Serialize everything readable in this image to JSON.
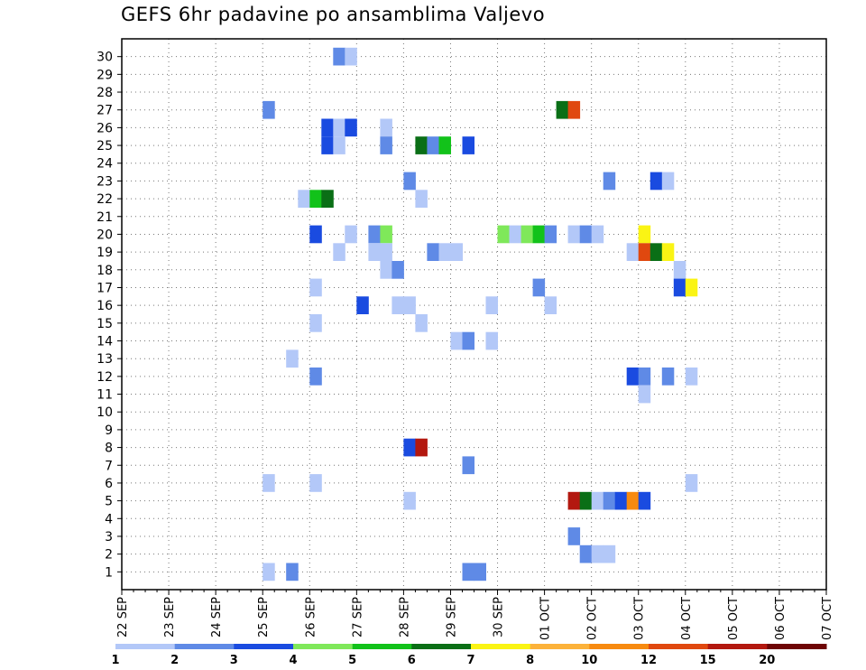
{
  "chart_data": {
    "type": "heatmap",
    "title": "GEFS 6hr padavine po ansamblima Valjevo",
    "xlabel": "",
    "ylabel": "",
    "grid": true,
    "y_ticks": [
      "1",
      "2",
      "3",
      "4",
      "5",
      "6",
      "7",
      "8",
      "9",
      "10",
      "11",
      "12",
      "13",
      "14",
      "15",
      "16",
      "17",
      "18",
      "19",
      "20",
      "21",
      "22",
      "23",
      "24",
      "25",
      "26",
      "27",
      "28",
      "29",
      "30"
    ],
    "x_ticks": [
      "22 SEP",
      "23 SEP",
      "24 SEP",
      "25 SEP",
      "26 SEP",
      "27 SEP",
      "28 SEP",
      "29 SEP",
      "30 SEP",
      "01 OCT",
      "02 OCT",
      "03 OCT",
      "04 OCT",
      "05 OCT",
      "06 OCT",
      "07 OCT"
    ],
    "x_range_steps": [
      0,
      60
    ],
    "colorbar": {
      "labels": [
        "1",
        "2",
        "3",
        "4",
        "5",
        "6",
        "7",
        "8",
        "10",
        "12",
        "15",
        "20"
      ],
      "colors": [
        "#b3c8f8",
        "#5f8ae6",
        "#1a4be0",
        "#7fe85a",
        "#12c21a",
        "#0a6f16",
        "#faf414",
        "#fcb23a",
        "#f78a10",
        "#e0480f",
        "#b3180f",
        "#6e0505"
      ]
    },
    "cells": [
      {
        "member": 30,
        "step": 18,
        "value": 2
      },
      {
        "member": 30,
        "step": 19,
        "value": 1
      },
      {
        "member": 27,
        "step": 12,
        "value": 2
      },
      {
        "member": 27,
        "step": 37,
        "value": 6
      },
      {
        "member": 27,
        "step": 38,
        "value": 12
      },
      {
        "member": 26,
        "step": 17,
        "value": 3
      },
      {
        "member": 26,
        "step": 18,
        "value": 1
      },
      {
        "member": 26,
        "step": 19,
        "value": 3
      },
      {
        "member": 26,
        "step": 22,
        "value": 1
      },
      {
        "member": 25,
        "step": 17,
        "value": 3
      },
      {
        "member": 25,
        "step": 18,
        "value": 1
      },
      {
        "member": 25,
        "step": 22,
        "value": 2
      },
      {
        "member": 25,
        "step": 25,
        "value": 6
      },
      {
        "member": 25,
        "step": 26,
        "value": 2
      },
      {
        "member": 25,
        "step": 27,
        "value": 5
      },
      {
        "member": 25,
        "step": 29,
        "value": 3
      },
      {
        "member": 23,
        "step": 24,
        "value": 2
      },
      {
        "member": 23,
        "step": 41,
        "value": 2
      },
      {
        "member": 23,
        "step": 45,
        "value": 3
      },
      {
        "member": 23,
        "step": 46,
        "value": 1
      },
      {
        "member": 22,
        "step": 15,
        "value": 1
      },
      {
        "member": 22,
        "step": 16,
        "value": 5
      },
      {
        "member": 22,
        "step": 17,
        "value": 6
      },
      {
        "member": 22,
        "step": 25,
        "value": 1
      },
      {
        "member": 20,
        "step": 16,
        "value": 3
      },
      {
        "member": 20,
        "step": 19,
        "value": 1
      },
      {
        "member": 20,
        "step": 21,
        "value": 2
      },
      {
        "member": 20,
        "step": 22,
        "value": 4
      },
      {
        "member": 20,
        "step": 32,
        "value": 4
      },
      {
        "member": 20,
        "step": 33,
        "value": 1
      },
      {
        "member": 20,
        "step": 34,
        "value": 4
      },
      {
        "member": 20,
        "step": 35,
        "value": 5
      },
      {
        "member": 20,
        "step": 36,
        "value": 2
      },
      {
        "member": 20,
        "step": 38,
        "value": 1
      },
      {
        "member": 20,
        "step": 39,
        "value": 2
      },
      {
        "member": 20,
        "step": 40,
        "value": 1
      },
      {
        "member": 20,
        "step": 44,
        "value": 7
      },
      {
        "member": 19,
        "step": 18,
        "value": 1
      },
      {
        "member": 19,
        "step": 21,
        "value": 1
      },
      {
        "member": 19,
        "step": 22,
        "value": 1
      },
      {
        "member": 19,
        "step": 26,
        "value": 2
      },
      {
        "member": 19,
        "step": 27,
        "value": 1
      },
      {
        "member": 19,
        "step": 28,
        "value": 1
      },
      {
        "member": 19,
        "step": 43,
        "value": 1
      },
      {
        "member": 19,
        "step": 44,
        "value": 12
      },
      {
        "member": 19,
        "step": 45,
        "value": 6
      },
      {
        "member": 19,
        "step": 46,
        "value": 7
      },
      {
        "member": 18,
        "step": 22,
        "value": 1
      },
      {
        "member": 18,
        "step": 23,
        "value": 2
      },
      {
        "member": 18,
        "step": 47,
        "value": 1
      },
      {
        "member": 17,
        "step": 16,
        "value": 1
      },
      {
        "member": 17,
        "step": 35,
        "value": 2
      },
      {
        "member": 17,
        "step": 47,
        "value": 3
      },
      {
        "member": 17,
        "step": 48,
        "value": 7
      },
      {
        "member": 16,
        "step": 20,
        "value": 3
      },
      {
        "member": 16,
        "step": 23,
        "value": 1
      },
      {
        "member": 16,
        "step": 24,
        "value": 1
      },
      {
        "member": 16,
        "step": 31,
        "value": 1
      },
      {
        "member": 16,
        "step": 36,
        "value": 1
      },
      {
        "member": 15,
        "step": 16,
        "value": 1
      },
      {
        "member": 15,
        "step": 25,
        "value": 1
      },
      {
        "member": 14,
        "step": 28,
        "value": 1
      },
      {
        "member": 14,
        "step": 29,
        "value": 2
      },
      {
        "member": 14,
        "step": 31,
        "value": 1
      },
      {
        "member": 13,
        "step": 14,
        "value": 1
      },
      {
        "member": 12,
        "step": 16,
        "value": 2
      },
      {
        "member": 12,
        "step": 43,
        "value": 3
      },
      {
        "member": 12,
        "step": 44,
        "value": 2
      },
      {
        "member": 12,
        "step": 46,
        "value": 2
      },
      {
        "member": 12,
        "step": 48,
        "value": 1
      },
      {
        "member": 11,
        "step": 44,
        "value": 1
      },
      {
        "member": 8,
        "step": 24,
        "value": 3
      },
      {
        "member": 8,
        "step": 25,
        "value": 15
      },
      {
        "member": 7,
        "step": 29,
        "value": 2
      },
      {
        "member": 6,
        "step": 12,
        "value": 1
      },
      {
        "member": 6,
        "step": 16,
        "value": 1
      },
      {
        "member": 6,
        "step": 48,
        "value": 1
      },
      {
        "member": 5,
        "step": 24,
        "value": 1
      },
      {
        "member": 5,
        "step": 38,
        "value": 15
      },
      {
        "member": 5,
        "step": 39,
        "value": 6
      },
      {
        "member": 5,
        "step": 40,
        "value": 1
      },
      {
        "member": 5,
        "step": 41,
        "value": 2
      },
      {
        "member": 5,
        "step": 42,
        "value": 3
      },
      {
        "member": 5,
        "step": 43,
        "value": 10
      },
      {
        "member": 5,
        "step": 44,
        "value": 3
      },
      {
        "member": 3,
        "step": 38,
        "value": 2
      },
      {
        "member": 2,
        "step": 39,
        "value": 2
      },
      {
        "member": 2,
        "step": 40,
        "value": 1
      },
      {
        "member": 2,
        "step": 41,
        "value": 1
      },
      {
        "member": 1,
        "step": 12,
        "value": 1
      },
      {
        "member": 1,
        "step": 14,
        "value": 2
      },
      {
        "member": 1,
        "step": 29,
        "value": 2
      },
      {
        "member": 1,
        "step": 30,
        "value": 2
      }
    ]
  }
}
